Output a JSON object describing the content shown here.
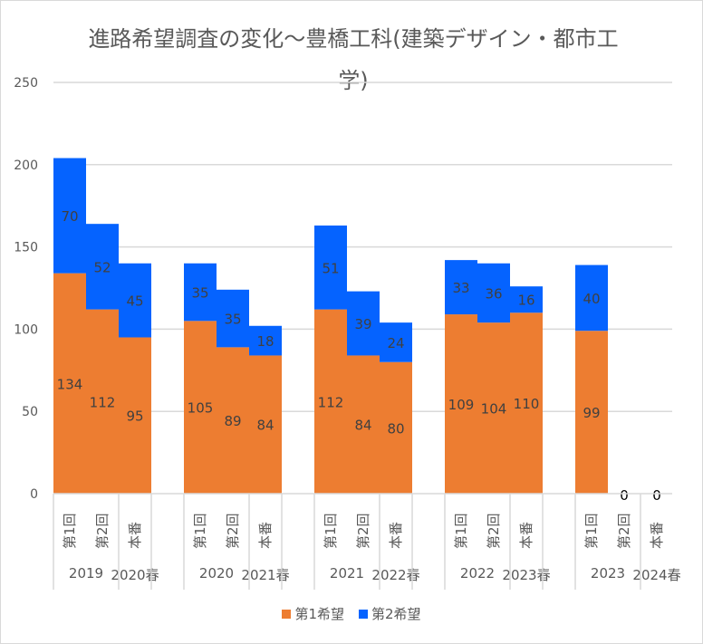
{
  "chart_data": {
    "type": "bar",
    "stacked": true,
    "title": "進路希望調査の変化～豊橋工科(建築デザイン・都市工学)",
    "xlabel": "",
    "ylabel": "",
    "ylim": [
      0,
      250
    ],
    "yticks": [
      0,
      50,
      100,
      150,
      200,
      250
    ],
    "grid": true,
    "legend_position": "bottom",
    "groups": [
      {
        "labels": [
          "2019",
          "2020春"
        ],
        "categories": [
          "第1回",
          "第2回",
          "本番"
        ]
      },
      {
        "labels": [
          "2020",
          "2021春"
        ],
        "categories": [
          "第1回",
          "第2回",
          "本番"
        ]
      },
      {
        "labels": [
          "2021",
          "2022春"
        ],
        "categories": [
          "第1回",
          "第2回",
          "本番"
        ]
      },
      {
        "labels": [
          "2022",
          "2023春"
        ],
        "categories": [
          "第1回",
          "第2回",
          "本番"
        ]
      },
      {
        "labels": [
          "2023",
          "2024春"
        ],
        "categories": [
          "第1回",
          "第2回",
          "本番"
        ]
      }
    ],
    "series": [
      {
        "name": "第1希望",
        "color": "#ED7D31",
        "values": [
          [
            134,
            112,
            95
          ],
          [
            105,
            89,
            84
          ],
          [
            112,
            84,
            80
          ],
          [
            109,
            104,
            110
          ],
          [
            99,
            null,
            null
          ]
        ]
      },
      {
        "name": "第2希望",
        "color": "#0563FF",
        "values": [
          [
            70,
            52,
            45
          ],
          [
            35,
            35,
            18
          ],
          [
            51,
            39,
            24
          ],
          [
            33,
            36,
            16
          ],
          [
            40,
            null,
            null
          ]
        ]
      }
    ],
    "total_labels": [
      {
        "group": 4,
        "index": 1,
        "text": "0"
      },
      {
        "group": 4,
        "index": 2,
        "text": "0"
      }
    ]
  }
}
